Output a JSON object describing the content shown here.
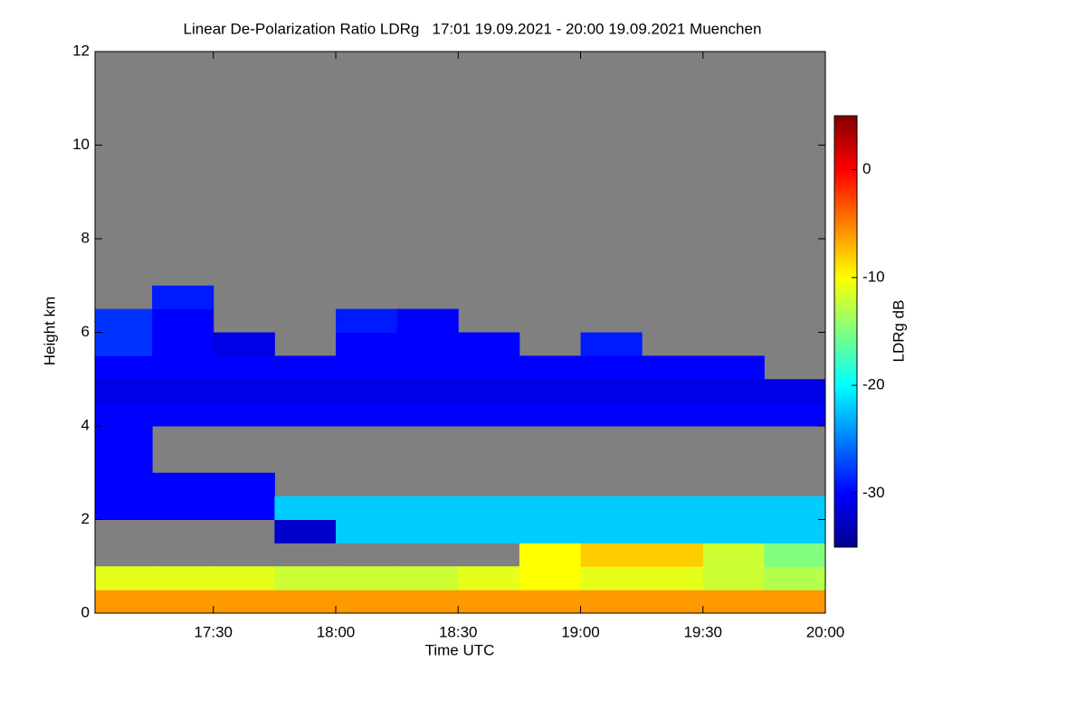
{
  "chart_data": {
    "type": "heatmap",
    "title": "Linear De-Polarization Ratio LDRg   17:01 19.09.2021 - 20:00 19.09.2021 Muenchen",
    "x_label": "Time UTC",
    "y_label": "Height km",
    "colorbar_label": "LDRg dB",
    "xlim": [
      17.0167,
      20
    ],
    "ylim": [
      0,
      12
    ],
    "zlim": [
      -35,
      5
    ],
    "xticks": [
      {
        "value": 17.5,
        "label": "17:30"
      },
      {
        "value": 18,
        "label": "18:00"
      },
      {
        "value": 18.5,
        "label": "18:30"
      },
      {
        "value": 19,
        "label": "19:00"
      },
      {
        "value": 19.5,
        "label": "19:30"
      },
      {
        "value": 20,
        "label": "20:00"
      }
    ],
    "yticks": [
      0,
      2,
      4,
      6,
      8,
      10,
      12
    ],
    "zticks": [
      -30,
      -20,
      -10,
      0
    ],
    "no_data_color": "#808080",
    "colormap": "jet",
    "x_edges": [
      17.0167,
      17.25,
      17.5,
      17.75,
      18,
      18.25,
      18.5,
      18.75,
      19,
      19.25,
      19.5,
      19.75,
      20
    ],
    "y_edges": [
      0,
      0.5,
      1,
      1.5,
      2,
      2.5,
      3,
      3.5,
      4,
      4.5,
      5,
      5.5,
      6,
      6.5,
      7
    ],
    "z": [
      [
        -6,
        -6,
        -6,
        -6,
        -6,
        -6,
        -6,
        -6,
        -6,
        -6,
        -6,
        -6
      ],
      [
        -11,
        -11,
        -11,
        -12,
        -12,
        -12,
        -11,
        -10,
        -11,
        -11,
        -12,
        -13
      ],
      [
        null,
        null,
        null,
        null,
        null,
        null,
        null,
        -10,
        -8,
        -8,
        -12,
        -15
      ],
      [
        null,
        null,
        null,
        -32,
        -22,
        -22,
        -22,
        -22,
        -22,
        -22,
        -22,
        -22
      ],
      [
        -30,
        -30,
        -30,
        -22,
        -22,
        -22,
        -22,
        -22,
        -22,
        -22,
        -22,
        -22
      ],
      [
        -30,
        -30,
        -30,
        null,
        null,
        null,
        null,
        null,
        null,
        null,
        null,
        null
      ],
      [
        -30,
        null,
        null,
        null,
        null,
        null,
        null,
        null,
        null,
        null,
        null,
        null
      ],
      [
        -30,
        null,
        null,
        null,
        null,
        null,
        null,
        null,
        null,
        null,
        null,
        null
      ],
      [
        -30,
        -30,
        -30,
        -30,
        -30,
        -30,
        -30,
        -30,
        -30,
        -30,
        -30,
        -30
      ],
      [
        -31,
        -31,
        -31,
        -31,
        -31,
        -31,
        -31,
        -31,
        -31,
        -31,
        -31,
        -31
      ],
      [
        -30,
        -30,
        -30,
        -30,
        -30,
        -30,
        -30,
        -30,
        -30,
        -30,
        -30,
        null
      ],
      [
        -28,
        -30,
        -31,
        null,
        -30,
        -30,
        -30,
        null,
        -29,
        null,
        null,
        null
      ],
      [
        -28,
        -30,
        null,
        null,
        -29,
        -30,
        null,
        null,
        null,
        null,
        null,
        null
      ],
      [
        null,
        -29,
        null,
        null,
        null,
        null,
        null,
        null,
        null,
        null,
        null,
        null
      ]
    ]
  }
}
